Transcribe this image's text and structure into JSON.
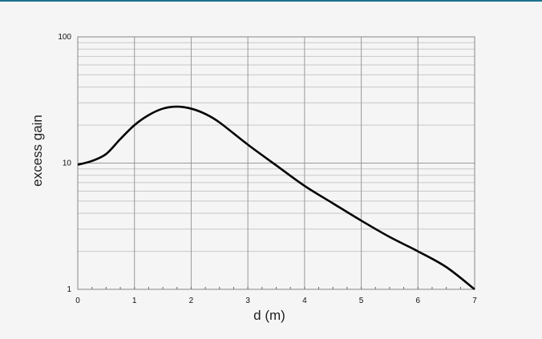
{
  "accent_color": "#1f6f8f",
  "chart_data": {
    "type": "line",
    "title": "",
    "xlabel": "d (m)",
    "ylabel": "excess gain",
    "xlim": [
      0,
      7
    ],
    "ylim": [
      1,
      100
    ],
    "yscale": "log",
    "grid": true,
    "legend": "none",
    "x_ticks": [
      "0",
      "1",
      "2",
      "3",
      "4",
      "5",
      "6",
      "7"
    ],
    "y_ticks": [
      "1",
      "10",
      "100"
    ],
    "series": [
      {
        "color": "#000000",
        "x": [
          0,
          0.25,
          0.5,
          0.75,
          1.0,
          1.25,
          1.5,
          1.75,
          2.0,
          2.25,
          2.5,
          3.0,
          3.5,
          4.0,
          4.5,
          5.0,
          5.5,
          6.0,
          6.5,
          7.0
        ],
        "y": [
          9.7,
          10.4,
          11.8,
          15.5,
          20,
          24,
          27,
          28,
          27,
          24.5,
          21,
          14,
          9.6,
          6.6,
          4.8,
          3.5,
          2.6,
          2.0,
          1.5,
          1.0
        ]
      }
    ]
  }
}
